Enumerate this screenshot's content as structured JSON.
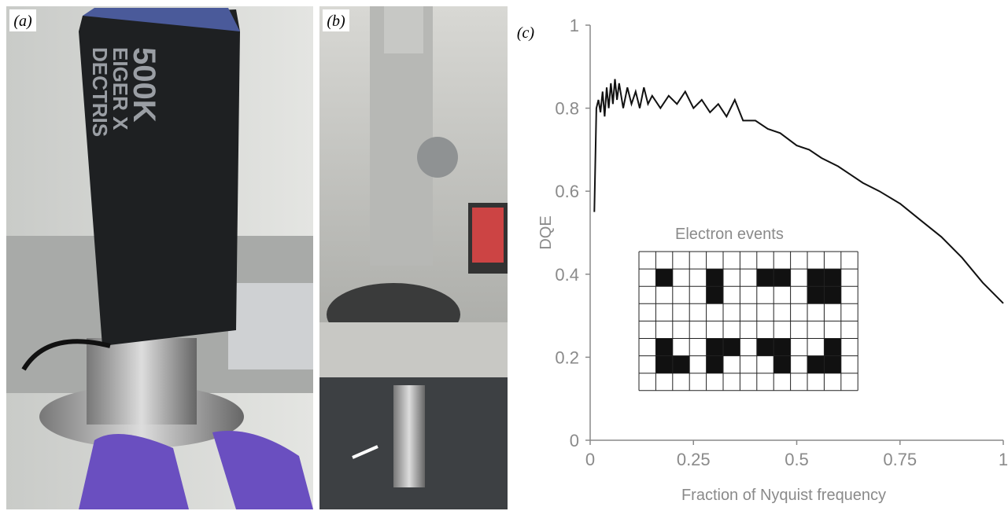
{
  "panels": {
    "a": {
      "label": "(a)",
      "camera_text": [
        "DECTRIS",
        "EIGER X",
        "500K"
      ]
    },
    "b": {
      "label": "(b)"
    },
    "c": {
      "label": "(c)"
    }
  },
  "chart_data": {
    "type": "line",
    "xlabel": "Fraction of Nyquist frequency",
    "ylabel": "DQE",
    "inset_title": "Electron events",
    "xlim": [
      0,
      1
    ],
    "ylim": [
      0,
      1
    ],
    "xticks": [
      0,
      0.25,
      0.5,
      0.75,
      1
    ],
    "yticks": [
      0,
      0.2,
      0.4,
      0.6,
      0.8,
      1
    ],
    "series": [
      {
        "color": "#111111",
        "x": [
          0.01,
          0.015,
          0.02,
          0.025,
          0.03,
          0.035,
          0.04,
          0.045,
          0.05,
          0.055,
          0.06,
          0.065,
          0.07,
          0.08,
          0.09,
          0.1,
          0.11,
          0.12,
          0.13,
          0.14,
          0.15,
          0.17,
          0.19,
          0.21,
          0.23,
          0.25,
          0.27,
          0.29,
          0.31,
          0.33,
          0.35,
          0.37,
          0.4,
          0.43,
          0.46,
          0.5,
          0.53,
          0.56,
          0.6,
          0.63,
          0.66,
          0.7,
          0.75,
          0.8,
          0.85,
          0.9,
          0.95,
          1.0
        ],
        "values": [
          0.55,
          0.8,
          0.82,
          0.79,
          0.84,
          0.78,
          0.85,
          0.8,
          0.86,
          0.81,
          0.87,
          0.82,
          0.86,
          0.8,
          0.85,
          0.81,
          0.84,
          0.8,
          0.85,
          0.81,
          0.83,
          0.8,
          0.83,
          0.81,
          0.84,
          0.8,
          0.82,
          0.79,
          0.81,
          0.78,
          0.82,
          0.77,
          0.77,
          0.75,
          0.74,
          0.71,
          0.7,
          0.68,
          0.66,
          0.64,
          0.62,
          0.6,
          0.57,
          0.53,
          0.49,
          0.44,
          0.38,
          0.33
        ]
      }
    ]
  }
}
